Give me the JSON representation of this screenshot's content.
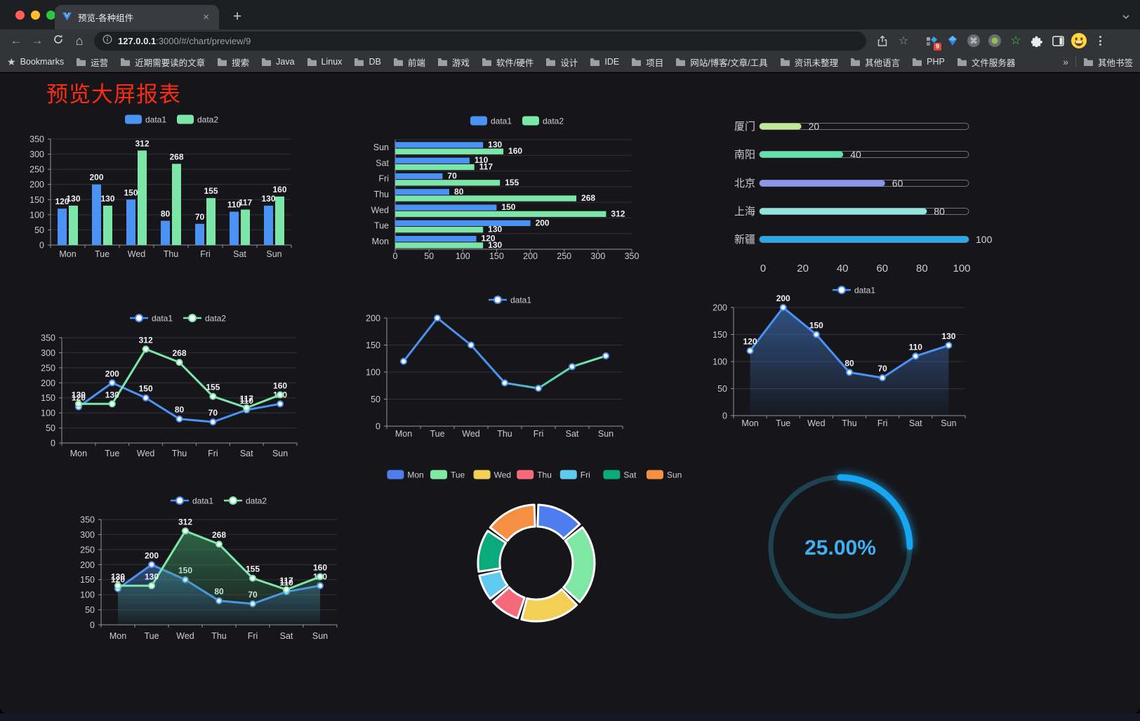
{
  "browser": {
    "tab_title": "预览-各种组件",
    "url": {
      "host": "127.0.0.1",
      "rest": ":3000/#/chart/preview/9"
    },
    "extension_badge": "9",
    "bookmarks_bar": {
      "bookmarks_label": "Bookmarks",
      "folders": [
        "运营",
        "近期需要读的文章",
        "搜索",
        "Java",
        "Linux",
        "DB",
        "前端",
        "游戏",
        "软件/硬件",
        "设计",
        "IDE",
        "项目",
        "网站/博客/文章/工具",
        "资讯未整理",
        "其他语言",
        "PHP",
        "文件服务器"
      ],
      "overflow_chevron": "»",
      "other_bookmarks": "其他书签"
    }
  },
  "page": {
    "title": "预览大屏报表",
    "title_color": "#f92c16",
    "background": "#16161a"
  },
  "chart_data": [
    {
      "id": "bar-grouped",
      "type": "bar",
      "orientation": "vertical",
      "categories": [
        "Mon",
        "Tue",
        "Wed",
        "Thu",
        "Fri",
        "Sat",
        "Sun"
      ],
      "series": [
        {
          "name": "data1",
          "color": "#4a93f5",
          "values": [
            120,
            200,
            150,
            80,
            70,
            110,
            130
          ]
        },
        {
          "name": "data2",
          "color": "#7ce6a8",
          "values": [
            130,
            130,
            312,
            268,
            155,
            117,
            160
          ]
        }
      ],
      "ylim": [
        0,
        350
      ],
      "yticks": [
        0,
        50,
        100,
        150,
        200,
        250,
        300,
        350
      ],
      "legend_position": "top",
      "bar_labels": true
    },
    {
      "id": "bar-horizontal",
      "type": "bar",
      "orientation": "horizontal",
      "categories": [
        "Mon",
        "Tue",
        "Wed",
        "Thu",
        "Fri",
        "Sat",
        "Sun"
      ],
      "series": [
        {
          "name": "data1",
          "color": "#4a93f5",
          "values": [
            120,
            200,
            150,
            80,
            70,
            110,
            130
          ]
        },
        {
          "name": "data2",
          "color": "#7ce6a8",
          "values": [
            130,
            130,
            312,
            268,
            155,
            117,
            160
          ]
        }
      ],
      "xlim": [
        0,
        350
      ],
      "xticks": [
        0,
        50,
        100,
        150,
        200,
        250,
        300,
        350
      ],
      "legend_position": "top",
      "bar_labels": true
    },
    {
      "id": "city-progress",
      "type": "bar",
      "orientation": "horizontal",
      "categories": [
        "厦门",
        "南阳",
        "北京",
        "上海",
        "新疆"
      ],
      "values": [
        20,
        40,
        60,
        80,
        100
      ],
      "colors": [
        "#bfe69a",
        "#63dfae",
        "#8c96e8",
        "#90e4de",
        "#2ba6e8"
      ],
      "xlim": [
        0,
        100
      ],
      "xticks": [
        0,
        20,
        40,
        60,
        80,
        100
      ],
      "bar_labels": true
    },
    {
      "id": "line-two",
      "type": "line",
      "categories": [
        "Mon",
        "Tue",
        "Wed",
        "Thu",
        "Fri",
        "Sat",
        "Sun"
      ],
      "series": [
        {
          "name": "data1",
          "color": "#4a93f5",
          "values": [
            120,
            200,
            150,
            80,
            70,
            110,
            130
          ]
        },
        {
          "name": "data2",
          "color": "#7ce6a8",
          "values": [
            130,
            130,
            312,
            268,
            155,
            117,
            160
          ]
        }
      ],
      "ylim": [
        0,
        350
      ],
      "yticks": [
        0,
        50,
        100,
        150,
        200,
        250,
        300,
        350
      ],
      "legend_position": "top",
      "point_labels": true
    },
    {
      "id": "line-gradient",
      "type": "line",
      "categories": [
        "Mon",
        "Tue",
        "Wed",
        "Thu",
        "Fri",
        "Sat",
        "Sun"
      ],
      "series": [
        {
          "name": "data1",
          "color": "#4a93f5",
          "values": [
            120,
            200,
            150,
            80,
            70,
            110,
            130
          ]
        }
      ],
      "gradient_stops": [
        {
          "offset": 0,
          "color": "#4a92f2"
        },
        {
          "offset": 0.45,
          "color": "#4a92f2"
        },
        {
          "offset": 0.68,
          "color": "#55cdb8"
        },
        {
          "offset": 1,
          "color": "#78eaa6"
        }
      ],
      "ylim": [
        0,
        200
      ],
      "yticks": [
        0,
        50,
        100,
        150,
        200
      ],
      "legend_position": "top",
      "point_labels": false
    },
    {
      "id": "line-area",
      "type": "area",
      "categories": [
        "Mon",
        "Tue",
        "Wed",
        "Thu",
        "Fri",
        "Sat",
        "Sun"
      ],
      "series": [
        {
          "name": "data1",
          "color": "#4a93f5",
          "values": [
            120,
            200,
            150,
            80,
            70,
            110,
            130
          ],
          "area_from": "rgba(74,140,235,0.50)",
          "area_to": "rgba(74,140,235,0.03)"
        }
      ],
      "ylim": [
        0,
        200
      ],
      "yticks": [
        0,
        50,
        100,
        150,
        200
      ],
      "legend_position": "top",
      "point_labels": true
    },
    {
      "id": "line-area-two",
      "type": "area",
      "categories": [
        "Mon",
        "Tue",
        "Wed",
        "Thu",
        "Fri",
        "Sat",
        "Sun"
      ],
      "series": [
        {
          "name": "data1",
          "color": "#4a93f5",
          "values": [
            120,
            200,
            150,
            80,
            70,
            110,
            130
          ],
          "area_from": "rgba(74,140,235,0.45)",
          "area_to": "rgba(74,140,235,0.03)"
        },
        {
          "name": "data2",
          "color": "#7ce6a8",
          "values": [
            130,
            130,
            312,
            268,
            155,
            117,
            160
          ],
          "area_from": "rgba(70,175,115,0.50)",
          "area_to": "rgba(70,175,115,0.04)"
        }
      ],
      "ylim": [
        0,
        350
      ],
      "yticks": [
        0,
        50,
        100,
        150,
        200,
        250,
        300,
        350
      ],
      "legend_position": "top",
      "point_labels": true
    },
    {
      "id": "donut",
      "type": "pie",
      "categories": [
        "Mon",
        "Tue",
        "Wed",
        "Thu",
        "Fri",
        "Sat",
        "Sun"
      ],
      "values": [
        120,
        200,
        150,
        80,
        70,
        110,
        130
      ],
      "colors": [
        "#4e7df0",
        "#7fe7a4",
        "#f2d053",
        "#f5697a",
        "#5fc9ef",
        "#0baa7d",
        "#f58f42"
      ],
      "legend_position": "top"
    },
    {
      "id": "ring-progress",
      "type": "gauge",
      "value_percent": 25,
      "label": "25.00%",
      "progress_color": "#17a6f2",
      "track_color": "#1d4350",
      "text_color": "#3fb0f2"
    }
  ]
}
